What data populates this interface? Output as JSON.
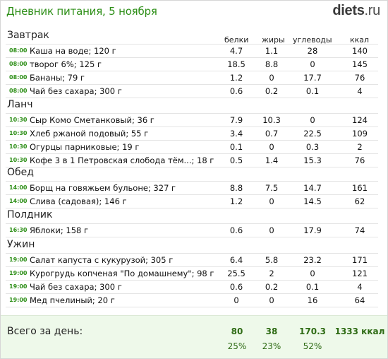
{
  "title": "Дневник питания, 5 ноября",
  "logo": {
    "main": "diets",
    "tld": ".ru"
  },
  "columns": {
    "protein": "белки",
    "fat": "жиры",
    "carbs": "углеводы",
    "kcal": "ккал"
  },
  "meals": [
    {
      "name": "Завтрак",
      "items": [
        {
          "time": "08:00",
          "food": "Каша на воде; 120 г",
          "p": "4.7",
          "f": "1.1",
          "c": "28",
          "k": "140"
        },
        {
          "time": "08:00",
          "food": "творог 6%; 125 г",
          "p": "18.5",
          "f": "8.8",
          "c": "0",
          "k": "145"
        },
        {
          "time": "08:00",
          "food": "Бананы; 79 г",
          "p": "1.2",
          "f": "0",
          "c": "17.7",
          "k": "76"
        },
        {
          "time": "08:00",
          "food": "Чай без сахара; 300 г",
          "p": "0.6",
          "f": "0.2",
          "c": "0.1",
          "k": "4"
        }
      ]
    },
    {
      "name": "Ланч",
      "items": [
        {
          "time": "10:30",
          "food": "Сыр Комо Сметанковый; 36 г",
          "p": "7.9",
          "f": "10.3",
          "c": "0",
          "k": "124"
        },
        {
          "time": "10:30",
          "food": "Хлеб ржаной подовый; 55 г",
          "p": "3.4",
          "f": "0.7",
          "c": "22.5",
          "k": "109"
        },
        {
          "time": "10:30",
          "food": "Огурцы парниковые; 19 г",
          "p": "0.1",
          "f": "0",
          "c": "0.3",
          "k": "2"
        },
        {
          "time": "10:30",
          "food": "Кофе 3 в 1 Петровская слобода тём...; 18 г",
          "p": "0.5",
          "f": "1.4",
          "c": "15.3",
          "k": "76"
        }
      ]
    },
    {
      "name": "Обед",
      "items": [
        {
          "time": "14:00",
          "food": "Борщ на говяжьем бульоне; 327 г",
          "p": "8.8",
          "f": "7.5",
          "c": "14.7",
          "k": "161"
        },
        {
          "time": "14:00",
          "food": "Слива (садовая); 146 г",
          "p": "1.2",
          "f": "0",
          "c": "14.5",
          "k": "62"
        }
      ]
    },
    {
      "name": "Полдник",
      "items": [
        {
          "time": "16:30",
          "food": "Яблоки; 158 г",
          "p": "0.6",
          "f": "0",
          "c": "17.9",
          "k": "74"
        }
      ]
    },
    {
      "name": "Ужин",
      "items": [
        {
          "time": "19:00",
          "food": "Салат капуста с кукурузой; 305 г",
          "p": "6.4",
          "f": "5.8",
          "c": "23.2",
          "k": "171"
        },
        {
          "time": "19:00",
          "food": "Курогрудь копченая \"По домашнему\"; 98 г",
          "p": "25.5",
          "f": "2",
          "c": "0",
          "k": "121"
        },
        {
          "time": "19:00",
          "food": "Чай без сахара; 300 г",
          "p": "0.6",
          "f": "0.2",
          "c": "0.1",
          "k": "4"
        },
        {
          "time": "19:00",
          "food": "Мед пчелиный; 20 г",
          "p": "0",
          "f": "0",
          "c": "16",
          "k": "64"
        }
      ]
    }
  ],
  "totals": {
    "label": "Всего за день:",
    "protein": "80",
    "fat": "38",
    "carbs": "170.3",
    "kcal": "1333 ккал",
    "protein_pct": "25%",
    "fat_pct": "23%",
    "carbs_pct": "52%"
  },
  "colors": {
    "accent": "#2e8f18",
    "total_bg": "#eef9ea",
    "total_text": "#2e6b14"
  }
}
